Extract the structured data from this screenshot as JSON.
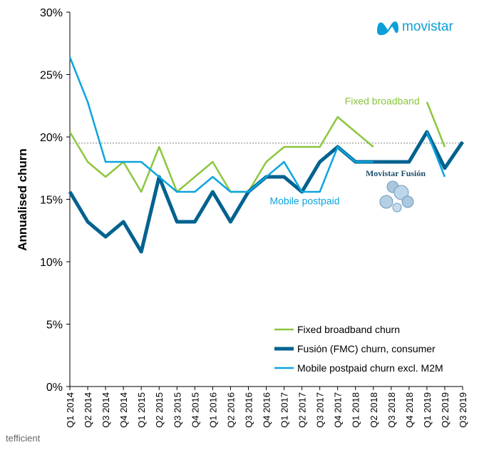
{
  "brand": {
    "name": "movistar",
    "logo_color": "#0b9fd8"
  },
  "watermark": {
    "text": "tefficient"
  },
  "badge": {
    "text": "Movistar Fusión"
  },
  "chart_data": {
    "type": "line",
    "title": "",
    "ylabel": "Annualised churn",
    "xlabel": "",
    "ylim": [
      0,
      30
    ],
    "yticks": [
      0,
      5,
      10,
      15,
      20,
      25,
      30
    ],
    "ytick_labels": [
      "0%",
      "5%",
      "10%",
      "15%",
      "20%",
      "25%",
      "30%"
    ],
    "categories": [
      "Q1 2014",
      "Q2 2014",
      "Q3 2014",
      "Q4 2014",
      "Q1 2015",
      "Q2 2015",
      "Q3 2015",
      "Q4 2015",
      "Q1 2016",
      "Q2 2016",
      "Q3 2016",
      "Q4 2016",
      "Q1 2017",
      "Q2 2017",
      "Q3 2017",
      "Q4 2017",
      "Q1 2018",
      "Q2 2018",
      "Q3 2018",
      "Q4 2018",
      "Q1 2019",
      "Q2 2019",
      "Q3 2019"
    ],
    "reference_line": {
      "value": 19.5,
      "style": "dashed"
    },
    "series": [
      {
        "name": "Fixed broadband churn",
        "color": "#8cc63f",
        "width": 2.5,
        "values": [
          20.4,
          18.0,
          16.8,
          18.0,
          15.6,
          19.2,
          15.6,
          16.8,
          18.0,
          15.6,
          15.6,
          18.0,
          19.2,
          19.2,
          19.2,
          21.6,
          20.4,
          19.2,
          null,
          null,
          22.8,
          19.2,
          null
        ]
      },
      {
        "name": "Fusión (FMC) churn, consumer",
        "color": "#00628f",
        "width": 5,
        "values": [
          15.6,
          13.2,
          12.0,
          13.2,
          10.8,
          16.8,
          13.2,
          13.2,
          15.6,
          13.2,
          15.6,
          16.8,
          16.8,
          15.6,
          18.0,
          19.2,
          18.0,
          18.0,
          18.0,
          18.0,
          20.4,
          17.5,
          19.6
        ]
      },
      {
        "name": "Mobile postpaid churn excl. M2M",
        "color": "#0ba5e0",
        "width": 2.5,
        "values": [
          26.4,
          22.8,
          18.0,
          18.0,
          18.0,
          16.8,
          15.6,
          15.6,
          16.8,
          15.6,
          15.6,
          16.8,
          18.0,
          15.6,
          15.6,
          19.2,
          18.0,
          18.0,
          null,
          null,
          20.4,
          16.8,
          null
        ]
      }
    ],
    "annotations": [
      {
        "text": "Fixed broadband",
        "color": "#8cc63f",
        "x": "Q4 2017",
        "y": 22.6
      },
      {
        "text": "Mobile postpaid",
        "color": "#0ba5e0",
        "x": "Q3 2016",
        "y": 14.6
      }
    ],
    "legend": {
      "position": "bottom-right"
    },
    "grid": false
  }
}
